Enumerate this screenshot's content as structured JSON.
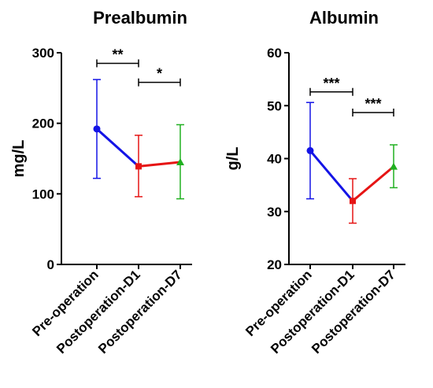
{
  "chart_data": [
    {
      "type": "line",
      "title": "Prealbumin",
      "ylabel": "mg/L",
      "xlabel": "",
      "ylim": [
        0,
        300
      ],
      "yticks": [
        "0",
        "100",
        "200",
        "300"
      ],
      "categories": [
        "Pre-operation",
        "Postoperation-D1",
        "Postoperation-D7"
      ],
      "values": [
        192,
        139,
        145
      ],
      "error_low": [
        122,
        96,
        93
      ],
      "error_high": [
        262,
        183,
        198
      ],
      "point_colors": [
        "#1414e6",
        "#e61414",
        "#20b020"
      ],
      "segment_colors": [
        "#1414e6",
        "#e61414"
      ],
      "markers": [
        "circle",
        "square",
        "triangle"
      ],
      "significance": [
        {
          "from": 0,
          "to": 1,
          "label": "**",
          "level": 285
        },
        {
          "from": 1,
          "to": 2,
          "label": "*",
          "level": 258
        }
      ],
      "grid": false
    },
    {
      "type": "line",
      "title": "Albumin",
      "ylabel": "g/L",
      "xlabel": "",
      "ylim": [
        20,
        60
      ],
      "yticks": [
        "20",
        "30",
        "40",
        "50",
        "60"
      ],
      "categories": [
        "Pre-operation",
        "Postoperation-D1",
        "Postoperation-D7"
      ],
      "values": [
        41.5,
        32,
        38.5
      ],
      "error_low": [
        32.4,
        27.8,
        34.5
      ],
      "error_high": [
        50.6,
        36.2,
        42.6
      ],
      "point_colors": [
        "#1414e6",
        "#e61414",
        "#20b020"
      ],
      "segment_colors": [
        "#1414e6",
        "#e61414"
      ],
      "markers": [
        "circle",
        "square",
        "triangle"
      ],
      "significance": [
        {
          "from": 0,
          "to": 1,
          "label": "***",
          "level": 52.6
        },
        {
          "from": 1,
          "to": 2,
          "label": "***",
          "level": 48.7
        }
      ],
      "grid": false
    }
  ]
}
